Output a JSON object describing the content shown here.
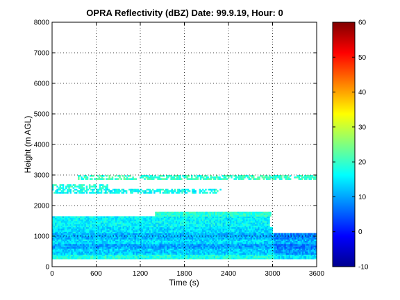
{
  "chart_data": {
    "type": "heatmap",
    "title": "OPRA Reflectivity (dBZ)  Date: 99.9.19, Hour: 0",
    "xlabel": "Time (s)",
    "ylabel": "Height (m AGL)",
    "xlim": [
      0,
      3600
    ],
    "ylim": [
      0,
      8000
    ],
    "xticks": [
      "0",
      "600",
      "1200",
      "1800",
      "2400",
      "3000",
      "3600"
    ],
    "yticks": [
      "0",
      "1000",
      "2000",
      "3000",
      "4000",
      "5000",
      "6000",
      "7000",
      "8000"
    ],
    "grid": "dotted",
    "colorbar": {
      "clim": [
        -10,
        60
      ],
      "ticks": [
        "-10",
        "0",
        "10",
        "20",
        "30",
        "40",
        "50",
        "60"
      ],
      "colormap": "jet"
    },
    "layers": [
      {
        "y0": 250,
        "y1": 400,
        "x0": 0,
        "x1": 3600,
        "dbz": 18
      },
      {
        "y0": 400,
        "y1": 600,
        "x0": 0,
        "x1": 3600,
        "dbz": 13
      },
      {
        "y0": 600,
        "y1": 750,
        "x0": 0,
        "x1": 3600,
        "dbz": 10
      },
      {
        "y0": 750,
        "y1": 900,
        "x0": 0,
        "x1": 3600,
        "dbz": 14
      },
      {
        "y0": 900,
        "y1": 1100,
        "x0": 0,
        "x1": 3600,
        "dbz": 11
      },
      {
        "y0": 1100,
        "y1": 1300,
        "x0": 0,
        "x1": 3000,
        "dbz": 14
      },
      {
        "y0": 1300,
        "y1": 1650,
        "x0": 0,
        "x1": 2950,
        "dbz": 16
      },
      {
        "y0": 1650,
        "y1": 1800,
        "x0": 1400,
        "x1": 2980,
        "dbz": 19
      },
      {
        "y0": 2400,
        "y1": 2550,
        "x0": 0,
        "x1": 2300,
        "dbz": 17
      },
      {
        "y0": 2550,
        "y1": 2700,
        "x0": 0,
        "x1": 750,
        "dbz": 19
      },
      {
        "y0": 2850,
        "y1": 3000,
        "x0": 350,
        "x1": 3600,
        "dbz": 20
      }
    ]
  }
}
